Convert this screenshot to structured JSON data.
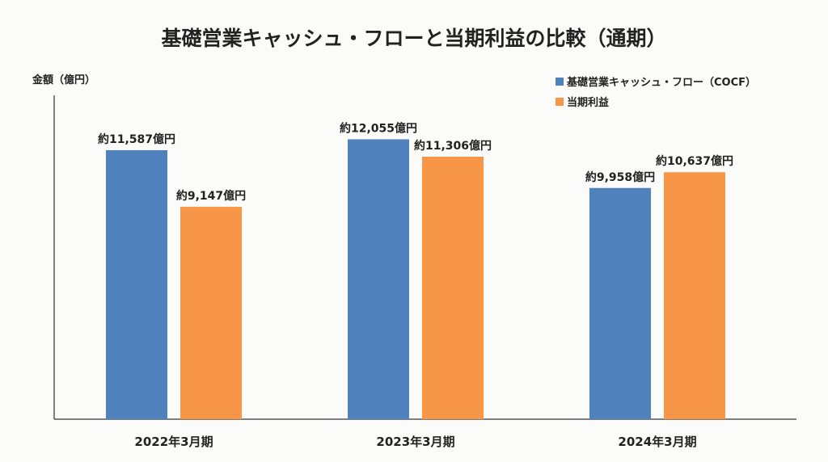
{
  "chart_data": {
    "type": "bar",
    "title": "基礎営業キャッシュ・フローと当期利益の比較（通期）",
    "xlabel": "",
    "ylabel": "金額（億円）",
    "ylim": [
      0,
      13950
    ],
    "grid": false,
    "legend_position": "top-right",
    "categories": [
      "2022年3月期",
      "2023年3月期",
      "2024年3月期"
    ],
    "series": [
      {
        "name": "基礎営業キャッシュ・フロー（COCF）",
        "color": "#4f81bd",
        "values": [
          11587,
          12055,
          9958
        ],
        "labels": [
          "約11,587億円",
          "約12,055億円",
          "約9,958億円"
        ]
      },
      {
        "name": "当期利益",
        "color": "#f79646",
        "values": [
          9147,
          11306,
          10637
        ],
        "labels": [
          "約9,147億円",
          "約11,306億円",
          "約10,637億円"
        ]
      }
    ]
  }
}
